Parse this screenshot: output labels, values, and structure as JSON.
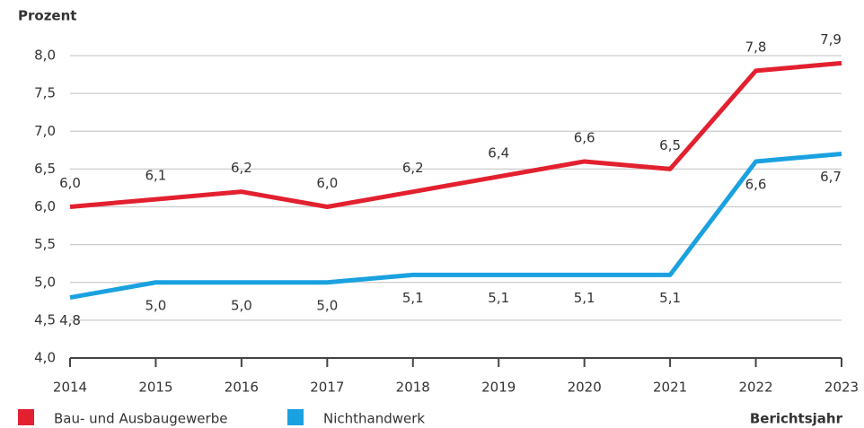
{
  "chart_data": {
    "type": "line",
    "y_label": "Prozent",
    "x_label": "Berichtsjahr",
    "categories": [
      "2014",
      "2015",
      "2016",
      "2017",
      "2018",
      "2019",
      "2020",
      "2021",
      "2022",
      "2023"
    ],
    "series": [
      {
        "name": "Bau- und Ausbaugewerbe",
        "color": "#e3202f",
        "values": [
          6.0,
          6.1,
          6.2,
          6.0,
          6.2,
          6.4,
          6.6,
          6.5,
          7.8,
          7.9
        ],
        "value_labels": [
          "6,0",
          "6,1",
          "6,2",
          "6,0",
          "6,2",
          "6,4",
          "6,6",
          "6,5",
          "7,8",
          "7,9"
        ]
      },
      {
        "name": "Nichthandwerk",
        "color": "#1aa1e0",
        "values": [
          4.8,
          5.0,
          5.0,
          5.0,
          5.1,
          5.1,
          5.1,
          5.1,
          6.6,
          6.7
        ],
        "value_labels": [
          "4,8",
          "5,0",
          "5,0",
          "5,0",
          "5,1",
          "5,1",
          "5,1",
          "5,1",
          "6,6",
          "6,7"
        ]
      }
    ],
    "ylim": [
      4.0,
      8.0
    ],
    "yticks": [
      {
        "value": 4.0,
        "label": "4,0"
      },
      {
        "value": 4.5,
        "label": "4,5"
      },
      {
        "value": 5.0,
        "label": "5,0"
      },
      {
        "value": 5.5,
        "label": "5,5"
      },
      {
        "value": 6.0,
        "label": "6,0"
      },
      {
        "value": 6.5,
        "label": "6,5"
      },
      {
        "value": 7.0,
        "label": "7,0"
      },
      {
        "value": 7.5,
        "label": "7,5"
      },
      {
        "value": 8.0,
        "label": "8,0"
      }
    ],
    "grid": true
  }
}
